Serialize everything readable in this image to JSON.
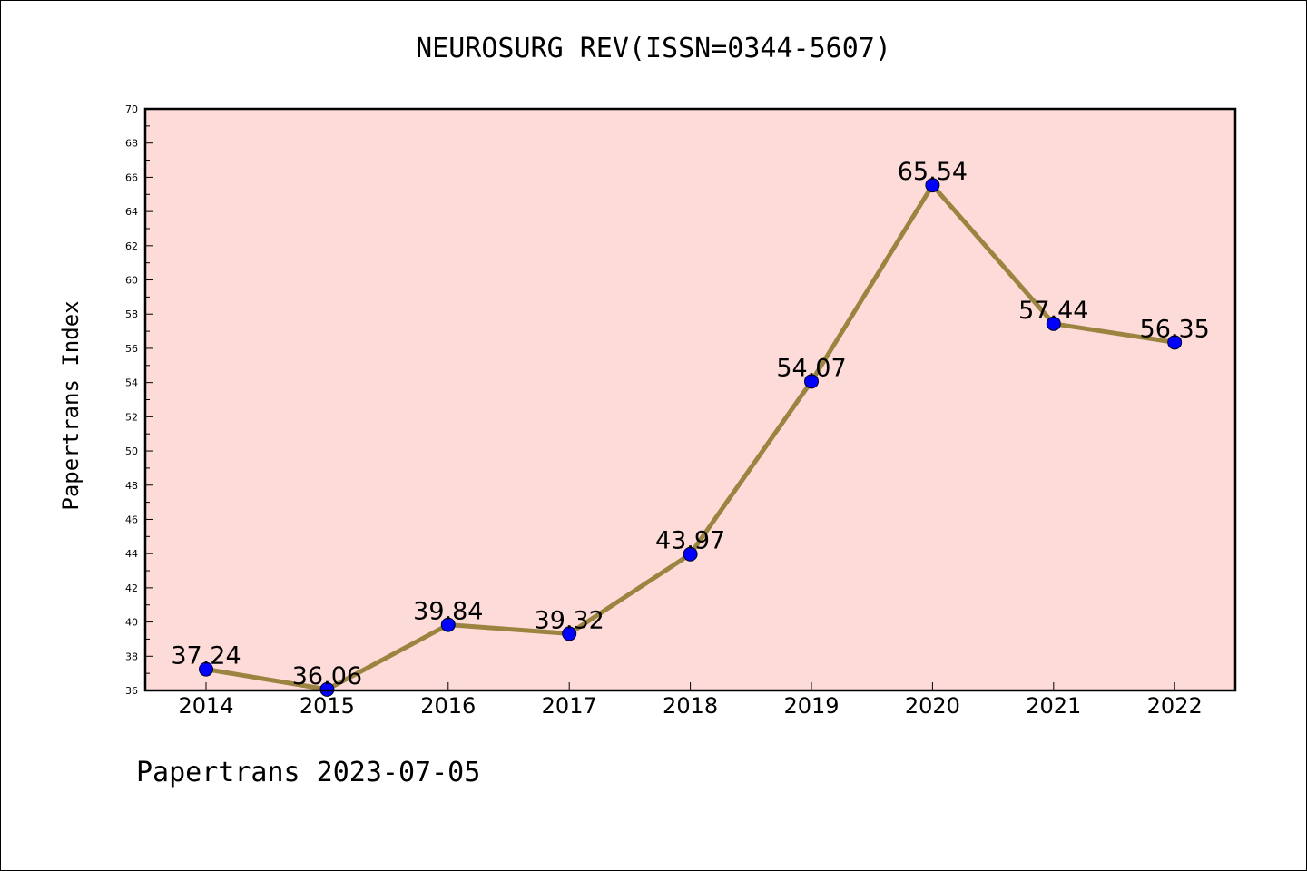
{
  "chart_data": {
    "type": "line",
    "title": "NEUROSURG REV(ISSN=0344-5607)",
    "ylabel": "Papertrans Index",
    "xlabel": "",
    "footer": "Papertrans 2023-07-05",
    "categories": [
      "2014",
      "2015",
      "2016",
      "2017",
      "2018",
      "2019",
      "2020",
      "2021",
      "2022"
    ],
    "values": [
      37.24,
      36.06,
      39.84,
      39.32,
      43.97,
      54.07,
      65.54,
      57.44,
      56.35
    ],
    "value_labels": [
      "37.24",
      "36.06",
      "39.84",
      "39.32",
      "43.97",
      "54.07",
      "65.54",
      "57.44",
      "56.35"
    ],
    "ylim": [
      36,
      70
    ],
    "yticks": [
      36,
      38,
      40,
      42,
      44,
      46,
      48,
      50,
      52,
      54,
      56,
      58,
      60,
      62,
      64,
      66,
      68,
      70
    ],
    "grid": false,
    "colors": {
      "plot_background": "#fddbd8",
      "line": "#9a8440",
      "marker": "#0000ff"
    }
  }
}
